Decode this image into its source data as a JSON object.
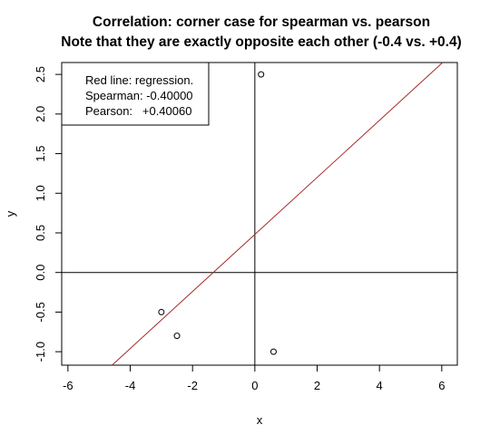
{
  "chart_data": {
    "type": "scatter",
    "title": "Correlation: corner case for spearman vs. pearson",
    "subtitle": "Note that they are exactly opposite each other (-0.4 vs. +0.4)",
    "xlabel": "x",
    "ylabel": "y",
    "xlim": [
      -6.2,
      6.5
    ],
    "ylim": [
      -1.17,
      2.65
    ],
    "x_ticks": [
      -6,
      -4,
      -2,
      0,
      2,
      4,
      6
    ],
    "x_tick_labels": [
      "-6",
      "-4",
      "-2",
      "0",
      "2",
      "4",
      "6"
    ],
    "y_ticks": [
      -1.0,
      -0.5,
      0.0,
      0.5,
      1.0,
      1.5,
      2.0,
      2.5
    ],
    "y_tick_labels": [
      "-1.0",
      "-0.5",
      "0.0",
      "0.5",
      "1.0",
      "1.5",
      "2.0",
      "2.5"
    ],
    "grid": false,
    "points": [
      {
        "x": -3.0,
        "y": -0.5
      },
      {
        "x": -2.5,
        "y": -0.8
      },
      {
        "x": 0.2,
        "y": 2.5
      },
      {
        "x": 0.6,
        "y": -1.0
      }
    ],
    "reference_lines": {
      "horizontal_y": 0,
      "vertical_x": 0,
      "color": "#000000"
    },
    "regression_line": {
      "intercept": 0.48,
      "slope": 0.36,
      "color": "#a52a2a"
    },
    "legend": {
      "placement": "top-left",
      "lines": [
        "Red line: regression.",
        "Spearman: -0.40000",
        "Pearson:   +0.40060"
      ]
    }
  }
}
